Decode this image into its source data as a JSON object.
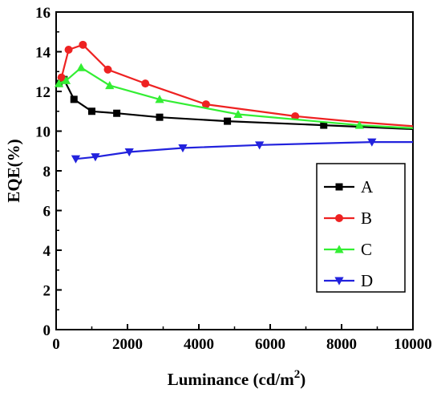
{
  "chart_data": {
    "type": "line",
    "xlabel": "Luminance (cd/m",
    "xlabel_sup": "2",
    "xlabel_end": ")",
    "ylabel": "EQE(%)",
    "xlim": [
      0,
      10000
    ],
    "ylim": [
      0,
      16
    ],
    "xticks": [
      "0",
      "2000",
      "4000",
      "6000",
      "8000",
      "10000"
    ],
    "yticks": [
      "0",
      "2",
      "4",
      "6",
      "8",
      "10",
      "12",
      "14",
      "16"
    ],
    "legend_position": "right",
    "series": [
      {
        "name": "A",
        "color": "#000000",
        "marker": "square",
        "x": [
          80,
          220,
          500,
          1000,
          1700,
          2900,
          4800,
          7500,
          10000
        ],
        "y": [
          12.4,
          12.6,
          11.6,
          11.0,
          10.9,
          10.7,
          10.5,
          10.3,
          10.1
        ],
        "markers_x": [
          80,
          220,
          500,
          1000,
          1700,
          2900,
          4800,
          7500
        ],
        "markers_y": [
          12.4,
          12.6,
          11.6,
          11.0,
          10.9,
          10.7,
          10.5,
          10.3
        ]
      },
      {
        "name": "B",
        "color": "#ee2222",
        "marker": "circle",
        "x": [
          150,
          350,
          750,
          1450,
          2500,
          4200,
          6700,
          8500,
          10000
        ],
        "y": [
          12.7,
          14.1,
          14.35,
          13.1,
          12.4,
          11.35,
          10.75,
          10.45,
          10.25
        ],
        "markers_x": [
          150,
          350,
          750,
          1450,
          2500,
          4200,
          6700
        ],
        "markers_y": [
          12.7,
          14.1,
          14.35,
          13.1,
          12.4,
          11.35,
          10.75
        ]
      },
      {
        "name": "C",
        "color": "#33ee33",
        "marker": "triangle-up",
        "x": [
          80,
          280,
          700,
          1500,
          2900,
          5100,
          8500,
          10000
        ],
        "y": [
          12.4,
          12.55,
          13.2,
          12.3,
          11.6,
          10.85,
          10.3,
          10.15
        ],
        "markers_x": [
          80,
          280,
          700,
          1500,
          2900,
          5100,
          8500
        ],
        "markers_y": [
          12.4,
          12.55,
          13.2,
          12.3,
          11.6,
          10.85,
          10.3
        ]
      },
      {
        "name": "D",
        "color": "#2222dd",
        "marker": "triangle-down",
        "x": [
          550,
          1100,
          2050,
          3550,
          5700,
          8850,
          10000
        ],
        "y": [
          8.6,
          8.7,
          8.95,
          9.15,
          9.3,
          9.45,
          9.45
        ],
        "markers_x": [
          550,
          1100,
          2050,
          3550,
          5700,
          8850
        ],
        "markers_y": [
          8.6,
          8.7,
          8.95,
          9.15,
          9.3,
          9.45
        ]
      }
    ]
  }
}
